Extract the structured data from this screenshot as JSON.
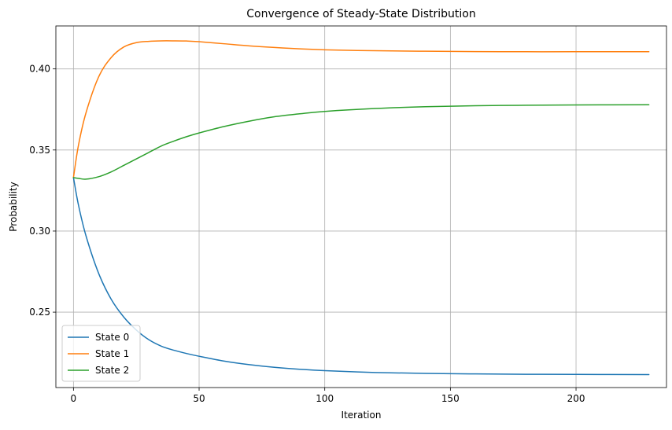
{
  "chart_data": {
    "type": "line",
    "title": "Convergence of Steady-State Distribution",
    "xlabel": "Iteration",
    "ylabel": "Probability",
    "xlim": [
      -7,
      236
    ],
    "ylim": [
      0.2035,
      0.4265
    ],
    "xticks": [
      0,
      50,
      100,
      150,
      200
    ],
    "xtick_labels": [
      "0",
      "50",
      "100",
      "150",
      "200"
    ],
    "yticks": [
      0.25,
      0.3,
      0.35,
      0.4
    ],
    "ytick_labels": [
      "0.25",
      "0.30",
      "0.35",
      "0.40"
    ],
    "grid": true,
    "legend_position": "lower-left",
    "x": [
      0,
      2,
      5,
      10,
      15,
      20,
      25,
      30,
      35,
      40,
      45,
      50,
      60,
      70,
      80,
      90,
      100,
      120,
      140,
      160,
      180,
      200,
      229
    ],
    "series": [
      {
        "name": "State 0",
        "color": "#1f77b4",
        "values": [
          0.333,
          0.316,
          0.297,
          0.274,
          0.258,
          0.247,
          0.239,
          0.233,
          0.229,
          0.2265,
          0.2245,
          0.2228,
          0.2198,
          0.2176,
          0.216,
          0.2148,
          0.2139,
          0.2128,
          0.2122,
          0.2119,
          0.2117,
          0.2116,
          0.2115
        ]
      },
      {
        "name": "State 1",
        "color": "#ff7f0e",
        "values": [
          0.333,
          0.353,
          0.373,
          0.395,
          0.407,
          0.4135,
          0.4162,
          0.417,
          0.4173,
          0.4173,
          0.4172,
          0.4168,
          0.4155,
          0.4142,
          0.4132,
          0.4124,
          0.4118,
          0.4112,
          0.4109,
          0.4107,
          0.4106,
          0.4106,
          0.4106
        ]
      },
      {
        "name": "State 2",
        "color": "#2ca02c",
        "values": [
          0.333,
          0.3325,
          0.332,
          0.3335,
          0.3365,
          0.3405,
          0.3445,
          0.3485,
          0.3525,
          0.3555,
          0.3582,
          0.3605,
          0.3645,
          0.3678,
          0.3705,
          0.3723,
          0.3738,
          0.3756,
          0.3767,
          0.3773,
          0.3776,
          0.3778,
          0.3779
        ]
      }
    ]
  }
}
